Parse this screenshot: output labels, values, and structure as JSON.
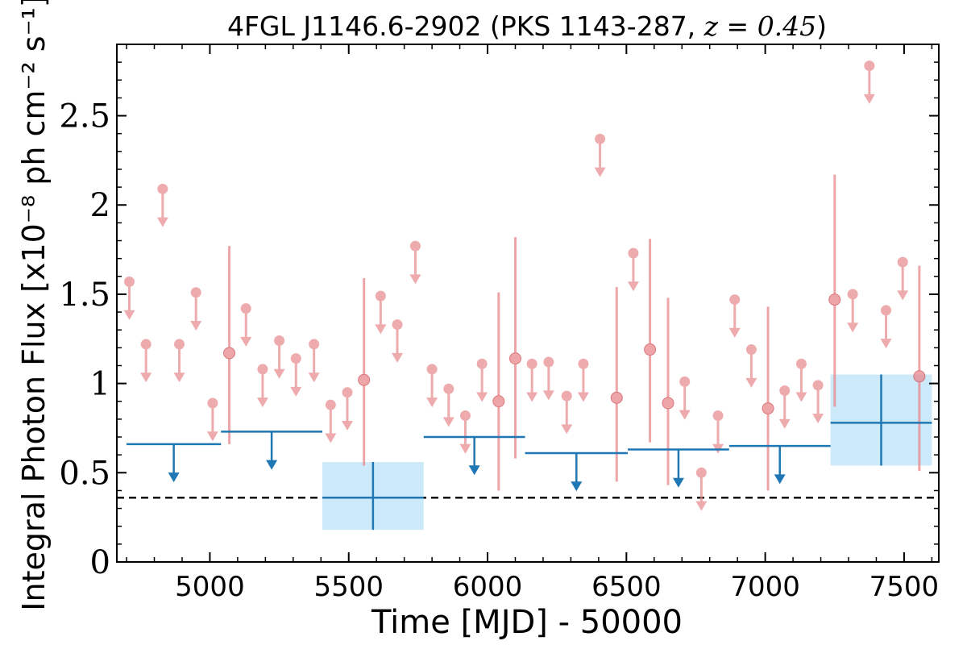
{
  "chart_data": {
    "type": "scatter",
    "title_prefix": "4FGL J1146.6-2902 (PKS 1143-287, ",
    "title_z": "z = 0.45",
    "title_suffix": ")",
    "xlabel": "Time [MJD] - 50000",
    "ylabel": "Integral Photon Flux [x10⁻⁸ ph cm⁻² s⁻¹]",
    "xlim": [
      4665,
      7625
    ],
    "ylim": [
      0,
      2.9
    ],
    "x_ticks": [
      5000,
      5500,
      6000,
      6500,
      7000,
      7500
    ],
    "x_tick_labels": [
      "5000",
      "5500",
      "6000",
      "6500",
      "7000",
      "7500"
    ],
    "y_ticks": [
      0,
      0.5,
      1,
      1.5,
      2,
      2.5
    ],
    "y_tick_labels": [
      "0",
      "0.5",
      "1",
      "1.5",
      "2",
      "2.5"
    ],
    "colors": {
      "short_bin": "#e8888c",
      "long_bin": "#1f77b4",
      "long_bin_band": "#cdeafa",
      "reference_line": "#000000"
    },
    "series": [
      {
        "kind": "short_bin_upper_limits",
        "points": [
          {
            "x": 4710,
            "y": 1.57
          },
          {
            "x": 4770,
            "y": 1.22
          },
          {
            "x": 4830,
            "y": 2.09
          },
          {
            "x": 4890,
            "y": 1.22
          },
          {
            "x": 4950,
            "y": 1.51
          },
          {
            "x": 5010,
            "y": 0.89
          },
          {
            "x": 5130,
            "y": 1.42
          },
          {
            "x": 5190,
            "y": 1.08
          },
          {
            "x": 5250,
            "y": 1.24
          },
          {
            "x": 5310,
            "y": 1.14
          },
          {
            "x": 5375,
            "y": 1.22
          },
          {
            "x": 5435,
            "y": 0.88
          },
          {
            "x": 5495,
            "y": 0.95
          },
          {
            "x": 5615,
            "y": 1.49
          },
          {
            "x": 5675,
            "y": 1.33
          },
          {
            "x": 5740,
            "y": 1.77
          },
          {
            "x": 5800,
            "y": 1.08
          },
          {
            "x": 5860,
            "y": 0.97
          },
          {
            "x": 5920,
            "y": 0.82
          },
          {
            "x": 5980,
            "y": 1.11
          },
          {
            "x": 6160,
            "y": 1.11
          },
          {
            "x": 6220,
            "y": 1.12
          },
          {
            "x": 6285,
            "y": 0.93
          },
          {
            "x": 6345,
            "y": 1.11
          },
          {
            "x": 6405,
            "y": 2.37
          },
          {
            "x": 6525,
            "y": 1.73
          },
          {
            "x": 6710,
            "y": 1.01
          },
          {
            "x": 6770,
            "y": 0.5
          },
          {
            "x": 6830,
            "y": 0.82
          },
          {
            "x": 6890,
            "y": 1.47
          },
          {
            "x": 6950,
            "y": 1.19
          },
          {
            "x": 7070,
            "y": 0.96
          },
          {
            "x": 7130,
            "y": 1.11
          },
          {
            "x": 7190,
            "y": 0.99
          },
          {
            "x": 7315,
            "y": 1.5
          },
          {
            "x": 7375,
            "y": 2.78
          },
          {
            "x": 7435,
            "y": 1.41
          },
          {
            "x": 7495,
            "y": 1.68
          }
        ]
      },
      {
        "kind": "short_bin_detections",
        "points": [
          {
            "x": 5070,
            "y": 1.17,
            "ylo": 0.66,
            "yhi": 1.77
          },
          {
            "x": 5555,
            "y": 1.02,
            "ylo": 0.54,
            "yhi": 1.59
          },
          {
            "x": 6040,
            "y": 0.9,
            "ylo": 0.4,
            "yhi": 1.51
          },
          {
            "x": 6100,
            "y": 1.14,
            "ylo": 0.58,
            "yhi": 1.82
          },
          {
            "x": 6465,
            "y": 0.92,
            "ylo": 0.45,
            "yhi": 1.54
          },
          {
            "x": 6585,
            "y": 1.19,
            "ylo": 0.67,
            "yhi": 1.81
          },
          {
            "x": 6650,
            "y": 0.89,
            "ylo": 0.43,
            "yhi": 1.48
          },
          {
            "x": 7010,
            "y": 0.86,
            "ylo": 0.4,
            "yhi": 1.43
          },
          {
            "x": 7250,
            "y": 1.47,
            "ylo": 0.87,
            "yhi": 2.17
          },
          {
            "x": 7555,
            "y": 1.04,
            "ylo": 0.51,
            "yhi": 1.66
          }
        ]
      },
      {
        "kind": "long_bin_upper_limits",
        "bins": [
          {
            "x0": 4700,
            "x1": 5040,
            "y": 0.66
          },
          {
            "x0": 5040,
            "x1": 5405,
            "y": 0.73
          },
          {
            "x0": 5770,
            "x1": 6135,
            "y": 0.7
          },
          {
            "x0": 6135,
            "x1": 6505,
            "y": 0.61
          },
          {
            "x0": 6505,
            "x1": 6870,
            "y": 0.63
          },
          {
            "x0": 6870,
            "x1": 7235,
            "y": 0.65
          }
        ]
      },
      {
        "kind": "long_bin_detections",
        "bins": [
          {
            "x0": 5405,
            "x1": 5770,
            "y": 0.36,
            "ylo": 0.18,
            "yhi": 0.56
          },
          {
            "x0": 7235,
            "x1": 7600,
            "y": 0.78,
            "ylo": 0.54,
            "yhi": 1.05
          }
        ]
      }
    ],
    "reference_line": {
      "y": 0.36,
      "style": "dashed"
    },
    "grid": false,
    "legend": "none"
  }
}
